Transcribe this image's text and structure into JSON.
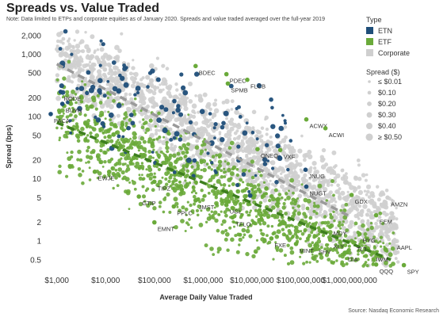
{
  "chart_data": {
    "type": "scatter",
    "title": "Spreads vs. Value Traded",
    "note": "Note: Data limited to ETPs and corporate equities as of January 2020. Spreads and value traded averaged over the full-year 2019",
    "source": "Source: Nasdaq Economic Research",
    "xlabel": "Average Daily Value Traded",
    "ylabel": "Spread (bps)",
    "x_scale": "log",
    "y_scale": "log",
    "xlim": [
      600,
      30000000000
    ],
    "ylim": [
      0.35,
      2600
    ],
    "x_ticks": [
      1000,
      10000,
      100000,
      1000000,
      10000000,
      100000000,
      1000000000
    ],
    "x_tick_labels": [
      "$1,000",
      "$10,000",
      "$100,000",
      "$1,000,000",
      "$10,000,000",
      "$100,000,000",
      "$1,000,000,000"
    ],
    "y_ticks": [
      0.5,
      1,
      2,
      5,
      10,
      20,
      50,
      100,
      200,
      500,
      1000,
      2000
    ],
    "y_tick_labels": [
      "0.5",
      "1",
      "2",
      "5",
      "10",
      "20",
      "50",
      "100",
      "200",
      "500",
      "1,000",
      "2,000"
    ],
    "grid": false,
    "legend_placement": "top-right",
    "type_legend": {
      "title": "Type",
      "items": [
        {
          "name": "ETN",
          "color": "#1f4e79"
        },
        {
          "name": "ETF",
          "color": "#6aaa3a"
        },
        {
          "name": "Corporate",
          "color": "#cfcfcf"
        }
      ]
    },
    "size_legend": {
      "title": "Spread ($)",
      "items": [
        "≤ $0.01",
        "$0.10",
        "$0.20",
        "$0.30",
        "$0.40",
        "≥ $0.50"
      ]
    },
    "trend_lines": [
      {
        "series": "Corporate",
        "color": "#9a9a9a",
        "points": [
          [
            1000,
            700
          ],
          [
            1000000000,
            2.5
          ]
        ]
      },
      {
        "series": "ETF",
        "color": "#3e7f1f",
        "points": [
          [
            1000,
            80
          ],
          [
            7000000000,
            0.5
          ]
        ]
      }
    ],
    "labeled_points": [
      {
        "label": "RODE",
        "type": "ETN",
        "x": 1200,
        "y": 250
      },
      {
        "label": "BUYN",
        "type": "ETN",
        "x": 1300,
        "y": 160
      },
      {
        "label": "PACA",
        "type": "ETN",
        "x": 750,
        "y": 110
      },
      {
        "label": "BDEC",
        "type": "ETF",
        "x": 700000,
        "y": 650
      },
      {
        "label": "PDEC",
        "type": "ETF",
        "x": 3000000,
        "y": 480
      },
      {
        "label": "SPMB",
        "type": "ETF",
        "x": 3200000,
        "y": 340
      },
      {
        "label": "FLCB",
        "type": "ETF",
        "x": 8000000,
        "y": 390
      },
      {
        "label": "ACWX",
        "type": "ETF",
        "x": 130000000,
        "y": 90
      },
      {
        "label": "ACWI",
        "type": "ETF",
        "x": 320000000,
        "y": 65
      },
      {
        "label": "QNEQ",
        "type": "ETF",
        "x": 13000000,
        "y": 30
      },
      {
        "label": "VXF",
        "type": "ETF",
        "x": 38000000,
        "y": 29
      },
      {
        "label": "JNUG",
        "type": "ETN",
        "x": 125000000,
        "y": 14
      },
      {
        "label": "NUGT",
        "type": "ETN",
        "x": 130000000,
        "y": 7.5
      },
      {
        "label": "EWJE",
        "type": "ETF",
        "x": 6000,
        "y": 13
      },
      {
        "label": "TIPZ",
        "type": "ETF",
        "x": 100000,
        "y": 9
      },
      {
        "label": "GTIP",
        "type": "ETF",
        "x": 48000,
        "y": 5.2
      },
      {
        "label": "JMST",
        "type": "ETF",
        "x": 700000,
        "y": 4.5
      },
      {
        "label": "PPLC",
        "type": "ETF",
        "x": 250000,
        "y": 3.6
      },
      {
        "label": "UGL",
        "type": "ETF",
        "x": 3000000,
        "y": 3.8
      },
      {
        "label": "TFLO",
        "type": "ETF",
        "x": 4000000,
        "y": 2.4
      },
      {
        "label": "EMNT",
        "type": "ETF",
        "x": 100000,
        "y": 2.0
      },
      {
        "label": "FXE",
        "type": "ETF",
        "x": 25000000,
        "y": 1.1
      },
      {
        "label": "MINT",
        "type": "ETF",
        "x": 80000000,
        "y": 0.9
      },
      {
        "label": "SHV",
        "type": "ETF",
        "x": 200000000,
        "y": 0.85
      },
      {
        "label": "XLY",
        "type": "ETF",
        "x": 400000000,
        "y": 1.05
      },
      {
        "label": "MDY",
        "type": "ETF",
        "x": 400000000,
        "y": 1.7
      },
      {
        "label": "DIA",
        "type": "ETF",
        "x": 800000000,
        "y": 0.65
      },
      {
        "label": "GDX",
        "type": "ETF",
        "x": 1100000000,
        "y": 5.5
      },
      {
        "label": "AMZN",
        "type": "Corporate",
        "x": 6000000000,
        "y": 5.0
      },
      {
        "label": "EEM",
        "type": "ETF",
        "x": 3500000000,
        "y": 2.6
      },
      {
        "label": "HYG",
        "type": "ETF",
        "x": 1600000000,
        "y": 1.3
      },
      {
        "label": "TLT",
        "type": "ETF",
        "x": 1200000000,
        "y": 0.95
      },
      {
        "label": "AAPL",
        "type": "Corporate",
        "x": 8000000000,
        "y": 1.0
      },
      {
        "label": "IWM",
        "type": "ETF",
        "x": 3000000000,
        "y": 0.65
      },
      {
        "label": "QQQ",
        "type": "ETF",
        "x": 3500000000,
        "y": 0.42
      },
      {
        "label": "SPY",
        "type": "ETF",
        "x": 13000000000,
        "y": 0.41
      }
    ]
  }
}
